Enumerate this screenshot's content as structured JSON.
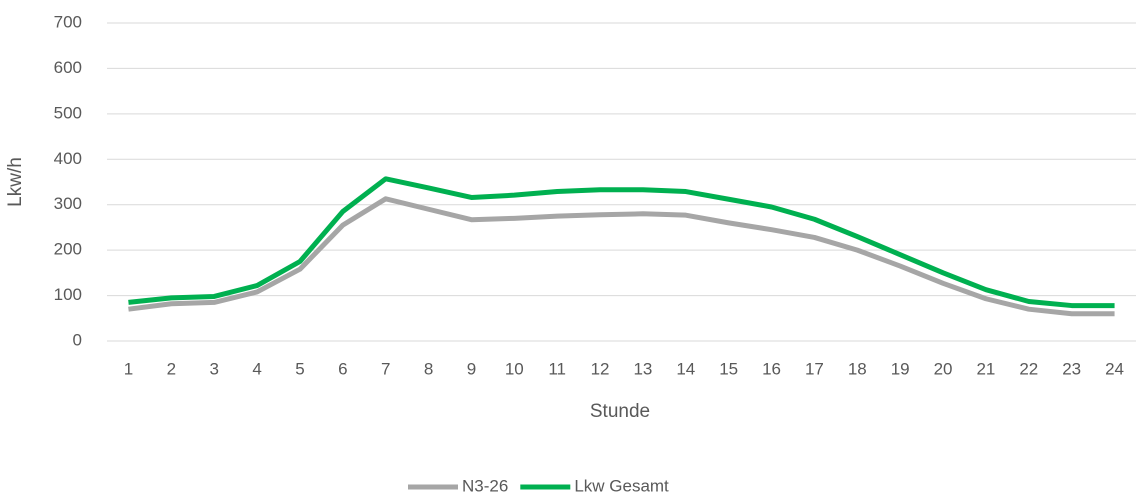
{
  "chart_data": {
    "type": "line",
    "x_label": "Stunde",
    "y_label": "Lkw/h",
    "categories": [
      "1",
      "2",
      "3",
      "4",
      "5",
      "6",
      "7",
      "8",
      "9",
      "10",
      "11",
      "12",
      "13",
      "14",
      "15",
      "16",
      "17",
      "18",
      "19",
      "20",
      "21",
      "22",
      "23",
      "24"
    ],
    "series": [
      {
        "name": "N3-26",
        "color": "#a6a6a6",
        "values": [
          70,
          82,
          85,
          108,
          158,
          255,
          313,
          290,
          267,
          270,
          275,
          278,
          280,
          277,
          260,
          245,
          228,
          200,
          165,
          127,
          93,
          70,
          60,
          60
        ]
      },
      {
        "name": "Lkw Gesamt",
        "color": "#00b050",
        "values": [
          85,
          95,
          98,
          122,
          175,
          285,
          357,
          337,
          316,
          321,
          329,
          333,
          333,
          329,
          312,
          295,
          268,
          230,
          190,
          150,
          113,
          87,
          78,
          78
        ]
      }
    ],
    "ylim": [
      0,
      700
    ],
    "yticks": [
      0,
      100,
      200,
      300,
      400,
      500,
      600,
      700
    ],
    "grid": true,
    "legend": "bottom"
  }
}
